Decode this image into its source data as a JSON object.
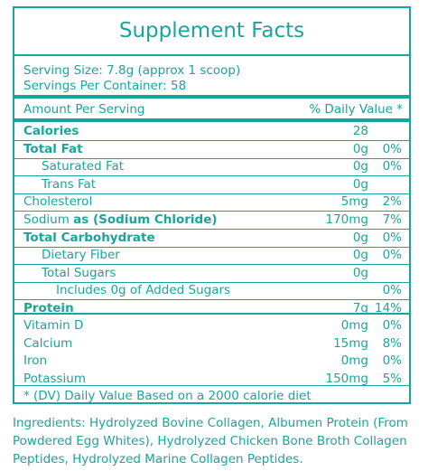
{
  "title": "Supplement Facts",
  "serving_size": "Serving Size: 7.8g (approx 1 scoop)",
  "servings_per_container": "Servings Per Container: 58",
  "header": {
    "amount": "Amount Per Serving",
    "dv": "% Daily Value *"
  },
  "rows": [
    {
      "label": "Calories",
      "amount": "28",
      "dv": "",
      "bold": true,
      "indent": 0
    },
    {
      "label": "Total Fat",
      "amount": "0g",
      "dv": "0%",
      "bold": true,
      "indent": 0
    },
    {
      "label": "Saturated Fat",
      "amount": "0g",
      "dv": "0%",
      "bold": false,
      "indent": 1
    },
    {
      "label": "Trans Fat",
      "amount": "0g",
      "dv": "",
      "bold": false,
      "indent": 1
    },
    {
      "label": "Cholesterol",
      "amount": "5mg",
      "dv": "2%",
      "bold": false,
      "indent": 0
    },
    {
      "label": "Sodium ",
      "label_bold": "as (Sodium Chloride)",
      "amount": "170mg",
      "dv": "7%",
      "bold": false,
      "indent": 0
    },
    {
      "label": "Total Carbohydrate",
      "amount": "0g",
      "dv": "0%",
      "bold": true,
      "indent": 0
    },
    {
      "label": "Dietary Fiber",
      "amount": "0g",
      "dv": "0%",
      "bold": false,
      "indent": 1
    },
    {
      "label": "Total Sugars",
      "amount": "0g",
      "dv": "",
      "bold": false,
      "indent": 1
    },
    {
      "label": "Includes 0g of Added Sugars",
      "amount": "",
      "dv": "0%",
      "bold": false,
      "indent": 2
    },
    {
      "label": "Protein",
      "amount": "7g",
      "dv": "14%",
      "bold": true,
      "indent": 0
    }
  ],
  "vitamins": [
    {
      "label": "Vitamin D",
      "amount": "0mg",
      "dv": "0%"
    },
    {
      "label": "Calcium",
      "amount": "15mg",
      "dv": "8%"
    },
    {
      "label": "Iron",
      "amount": "0mg",
      "dv": "0%"
    },
    {
      "label": "Potassium",
      "amount": "150mg",
      "dv": "5%"
    }
  ],
  "footnote": "* (DV) Daily Value Based on a 2000 calorie diet",
  "ingredients": "Ingredients: Hydrolyzed Bovine Collagen, Albumen Protein (From Powdered Egg Whites), Hydrolyzed Chicken Bone Broth Collagen Peptides, Hydrolyzed Marine Collagen Peptides.",
  "colors": {
    "accent": "#1aa59c"
  }
}
